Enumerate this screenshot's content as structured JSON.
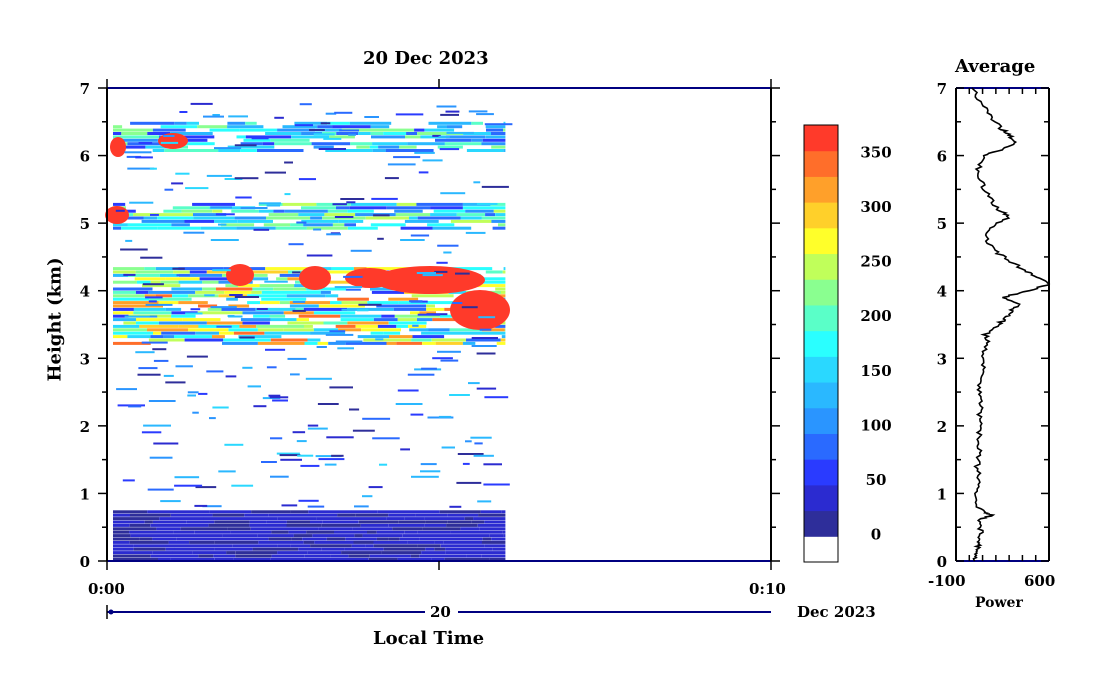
{
  "chart_data": [
    {
      "type": "heatmap",
      "title": "20 Dec 2023",
      "xlabel": "Local Time",
      "ylabel": "Height (km)",
      "x_tick_labels": [
        "0:00",
        "0:10"
      ],
      "date_axis": {
        "day_label": "20",
        "month_label": "Dec 2023"
      },
      "y_ticks": [
        "0",
        "1",
        "2",
        "3",
        "4",
        "5",
        "6",
        "7"
      ],
      "ylim": [
        0,
        7
      ],
      "data_extent_fraction_of_time_axis": 0.6,
      "layers": [
        {
          "name": "",
          "height_range": [
            0.0,
            0.75
          ],
          "level": 30
        },
        {
          "name": "",
          "height_range": [
            3.2,
            4.35
          ],
          "level": 300
        },
        {
          "name": "",
          "height_range": [
            4.9,
            5.3
          ],
          "level": 220
        },
        {
          "name": "",
          "height_range": [
            6.05,
            6.5
          ],
          "level": 200
        }
      ],
      "colorbar": {
        "tick_labels": [
          "0",
          "50",
          "100",
          "150",
          "200",
          "250",
          "300",
          "350"
        ],
        "range": [
          -25,
          375
        ],
        "step": 25,
        "colors": [
          "#ffffff",
          "#2e2e9a",
          "#2b2bd0",
          "#2a3bff",
          "#2a6aff",
          "#2a95ff",
          "#2ab8ff",
          "#2ad8ff",
          "#2affff",
          "#5affc8",
          "#8aff90",
          "#c0ff5a",
          "#ffff2a",
          "#ffd02a",
          "#ffa02a",
          "#ff6e2a",
          "#ff3a2a"
        ]
      }
    },
    {
      "type": "line",
      "title": "Average",
      "xlabel": "Power",
      "x_tick_labels": [
        "-100",
        "600"
      ],
      "xlim": [
        -100,
        600
      ],
      "ylim": [
        0,
        7
      ],
      "y_ticks": [
        "0",
        "1",
        "2",
        "3",
        "4",
        "5",
        "6",
        "7"
      ],
      "series": [
        {
          "points": [
            [
              50,
              0.0
            ],
            [
              40,
              0.1
            ],
            [
              60,
              0.2
            ],
            [
              80,
              0.3
            ],
            [
              90,
              0.45
            ],
            [
              70,
              0.6
            ],
            [
              170,
              0.68
            ],
            [
              120,
              0.72
            ],
            [
              60,
              0.8
            ],
            [
              55,
              1.0
            ],
            [
              70,
              1.2
            ],
            [
              60,
              1.4
            ],
            [
              80,
              1.6
            ],
            [
              65,
              1.8
            ],
            [
              90,
              2.0
            ],
            [
              75,
              2.2
            ],
            [
              100,
              2.4
            ],
            [
              70,
              2.6
            ],
            [
              110,
              2.8
            ],
            [
              90,
              3.0
            ],
            [
              140,
              3.2
            ],
            [
              120,
              3.35
            ],
            [
              220,
              3.5
            ],
            [
              280,
              3.6
            ],
            [
              320,
              3.7
            ],
            [
              360,
              3.8
            ],
            [
              250,
              3.9
            ],
            [
              450,
              4.0
            ],
            [
              600,
              4.1
            ],
            [
              520,
              4.2
            ],
            [
              420,
              4.3
            ],
            [
              300,
              4.45
            ],
            [
              180,
              4.6
            ],
            [
              120,
              4.8
            ],
            [
              180,
              4.95
            ],
            [
              300,
              5.1
            ],
            [
              220,
              5.2
            ],
            [
              140,
              5.4
            ],
            [
              90,
              5.6
            ],
            [
              70,
              5.8
            ],
            [
              100,
              6.0
            ],
            [
              260,
              6.1
            ],
            [
              350,
              6.2
            ],
            [
              300,
              6.3
            ],
            [
              240,
              6.4
            ],
            [
              150,
              6.6
            ],
            [
              80,
              6.8
            ],
            [
              20,
              7.0
            ]
          ]
        }
      ]
    }
  ],
  "colors": {
    "axis": "#000000",
    "frame": "#000080"
  }
}
